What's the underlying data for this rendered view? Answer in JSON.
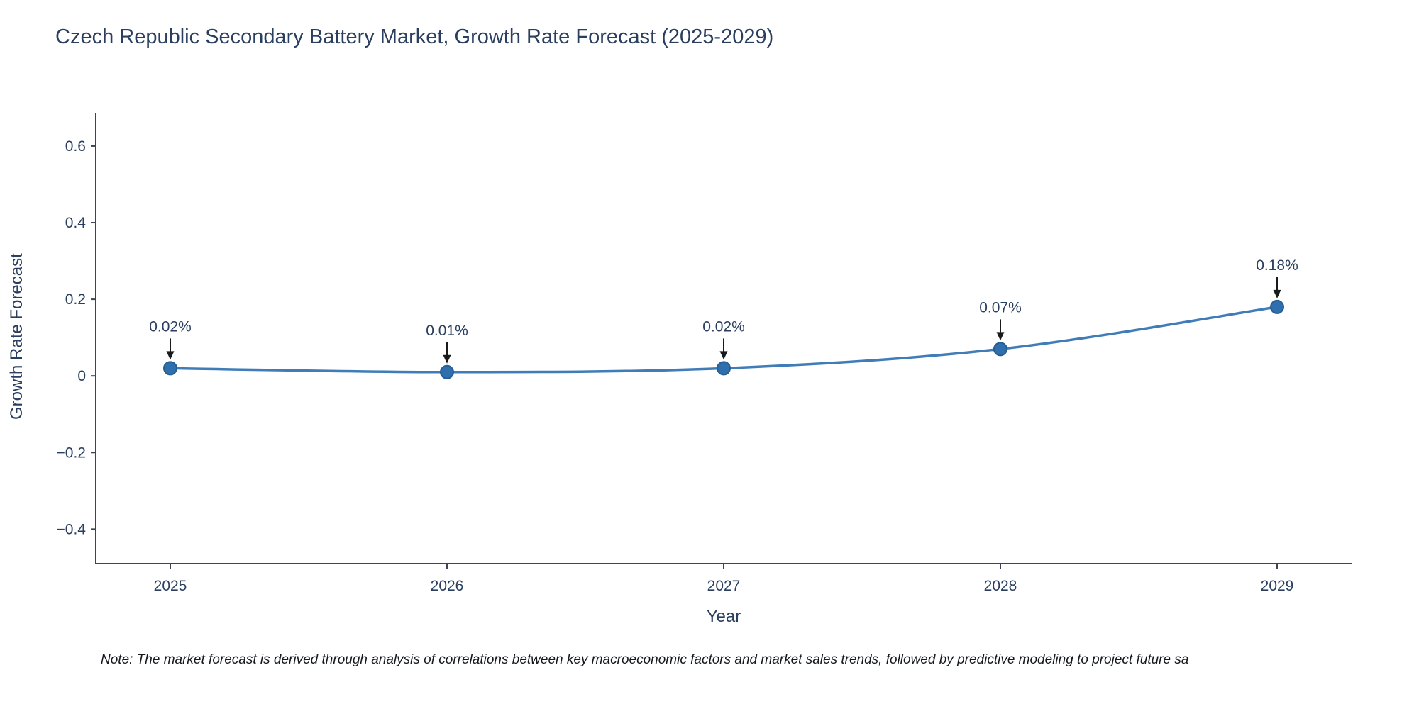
{
  "chart_data": {
    "type": "line",
    "title": "Czech Republic Secondary Battery Market, Growth Rate Forecast (2025-2029)",
    "xlabel": "Year",
    "ylabel": "Growth Rate Forecast",
    "categories": [
      2025,
      2026,
      2027,
      2028,
      2029
    ],
    "values": [
      0.02,
      0.01,
      0.02,
      0.07,
      0.18
    ],
    "annotations": [
      "0.02%",
      "0.01%",
      "0.02%",
      "0.07%",
      "0.18%"
    ],
    "y_ticks": [
      0.6,
      0.4,
      0.2,
      0,
      -0.2,
      -0.4
    ],
    "ylim": [
      -0.49,
      0.685
    ],
    "grid": false,
    "legend": "none",
    "colors": {
      "line": "#3f7cb8",
      "marker_fill": "#2f6fae",
      "marker_stroke": "#265d92",
      "axis": "#3f4450",
      "tick_text": "#2a3f5f",
      "annotation_text": "#2a3f5f",
      "arrow": "#1a1a1a"
    }
  },
  "note": "Note: The market forecast is derived through analysis of correlations between key macroeconomic factors and market sales trends, followed by predictive modeling to project future sa"
}
